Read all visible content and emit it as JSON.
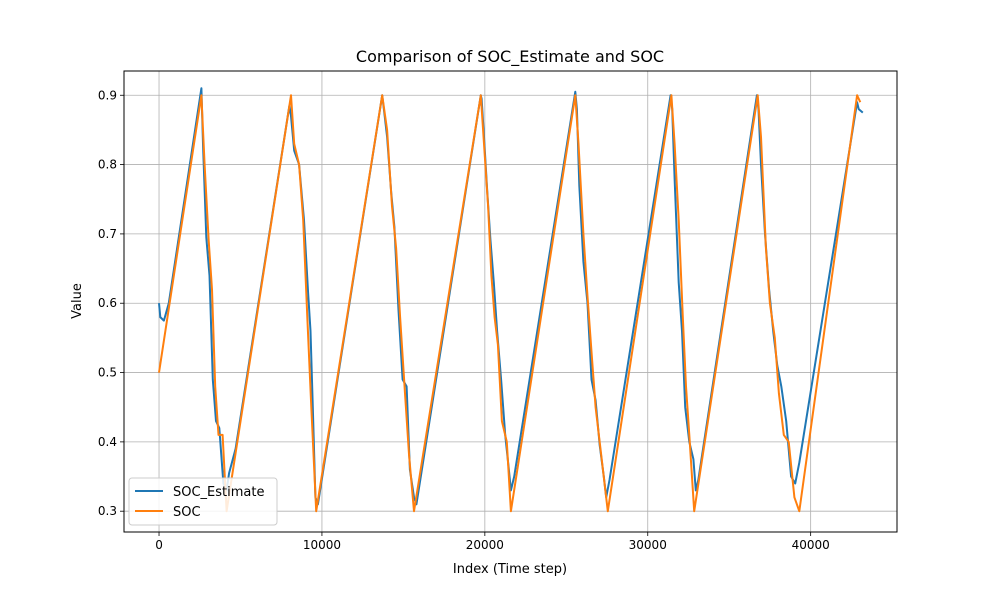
{
  "chart_data": {
    "type": "line",
    "title": "Comparison of SOC_Estimate and SOC",
    "xlabel": "Index (Time step)",
    "ylabel": "Value",
    "xlim": [
      -2150,
      45300
    ],
    "ylim": [
      0.27,
      0.935
    ],
    "xticks": [
      0,
      10000,
      20000,
      30000,
      40000
    ],
    "xtick_labels": [
      "0",
      "10000",
      "20000",
      "30000",
      "40000"
    ],
    "yticks": [
      0.3,
      0.4,
      0.5,
      0.6,
      0.7,
      0.8,
      0.9
    ],
    "ytick_labels": [
      "0.3",
      "0.4",
      "0.5",
      "0.6",
      "0.7",
      "0.8",
      "0.9"
    ],
    "grid": true,
    "legend_position": "lower-left",
    "series": [
      {
        "name": "SOC_Estimate",
        "color": "#1f77b4",
        "x": [
          0,
          80,
          300,
          600,
          2600,
          2700,
          2900,
          3100,
          3300,
          3500,
          3700,
          3950,
          4150,
          4300,
          4700,
          8000,
          8100,
          8300,
          8600,
          8900,
          9150,
          9300,
          9450,
          9600,
          9750,
          13700,
          13850,
          14000,
          14250,
          14450,
          14700,
          14950,
          15200,
          15400,
          15650,
          15800,
          16000,
          19750,
          19800,
          19950,
          20150,
          20350,
          20550,
          20750,
          21000,
          21250,
          21450,
          21600,
          21800,
          25550,
          25650,
          25800,
          26050,
          26300,
          26550,
          26800,
          27050,
          27300,
          27450,
          27650,
          31400,
          31500,
          31650,
          31900,
          32100,
          32300,
          32550,
          32800,
          32950,
          33100,
          36700,
          36800,
          36950,
          37200,
          37450,
          37700,
          37950,
          38200,
          38500,
          38800,
          39050,
          39300,
          42850,
          42950,
          43200
        ],
        "values": [
          0.6,
          0.58,
          0.575,
          0.6,
          0.91,
          0.83,
          0.695,
          0.64,
          0.49,
          0.43,
          0.42,
          0.34,
          0.33,
          0.355,
          0.39,
          0.885,
          0.87,
          0.82,
          0.8,
          0.72,
          0.615,
          0.56,
          0.44,
          0.32,
          0.31,
          0.9,
          0.87,
          0.84,
          0.76,
          0.71,
          0.59,
          0.49,
          0.48,
          0.36,
          0.32,
          0.31,
          0.34,
          0.9,
          0.895,
          0.84,
          0.76,
          0.69,
          0.63,
          0.56,
          0.49,
          0.41,
          0.365,
          0.33,
          0.35,
          0.905,
          0.88,
          0.77,
          0.66,
          0.6,
          0.49,
          0.46,
          0.395,
          0.35,
          0.32,
          0.345,
          0.9,
          0.88,
          0.78,
          0.63,
          0.56,
          0.45,
          0.4,
          0.375,
          0.33,
          0.345,
          0.9,
          0.88,
          0.8,
          0.7,
          0.62,
          0.56,
          0.51,
          0.48,
          0.43,
          0.35,
          0.34,
          0.37,
          0.89,
          0.88,
          0.875
        ]
      },
      {
        "name": "SOC",
        "color": "#ff7f0e",
        "x": [
          0,
          2600,
          2800,
          3050,
          3250,
          3450,
          3650,
          3900,
          4150,
          8100,
          8300,
          8600,
          8850,
          9100,
          9350,
          9650,
          13700,
          14000,
          14300,
          14550,
          14800,
          15100,
          15350,
          15650,
          19750,
          19950,
          20200,
          20400,
          20600,
          20800,
          21050,
          21350,
          21600,
          25550,
          25750,
          26050,
          26300,
          26550,
          26800,
          27150,
          27550,
          31450,
          31650,
          31900,
          32150,
          32350,
          32550,
          32850,
          36750,
          36950,
          37250,
          37500,
          37800,
          38050,
          38350,
          38650,
          39000,
          39300,
          42850,
          43050
        ],
        "values": [
          0.5,
          0.9,
          0.8,
          0.69,
          0.62,
          0.48,
          0.41,
          0.41,
          0.3,
          0.9,
          0.83,
          0.8,
          0.72,
          0.58,
          0.45,
          0.3,
          0.9,
          0.85,
          0.74,
          0.68,
          0.58,
          0.47,
          0.38,
          0.3,
          0.9,
          0.83,
          0.74,
          0.64,
          0.58,
          0.54,
          0.43,
          0.4,
          0.3,
          0.9,
          0.83,
          0.7,
          0.61,
          0.53,
          0.45,
          0.38,
          0.3,
          0.9,
          0.83,
          0.72,
          0.58,
          0.48,
          0.41,
          0.3,
          0.9,
          0.84,
          0.68,
          0.6,
          0.55,
          0.47,
          0.41,
          0.4,
          0.32,
          0.3,
          0.9,
          0.89
        ]
      }
    ]
  }
}
